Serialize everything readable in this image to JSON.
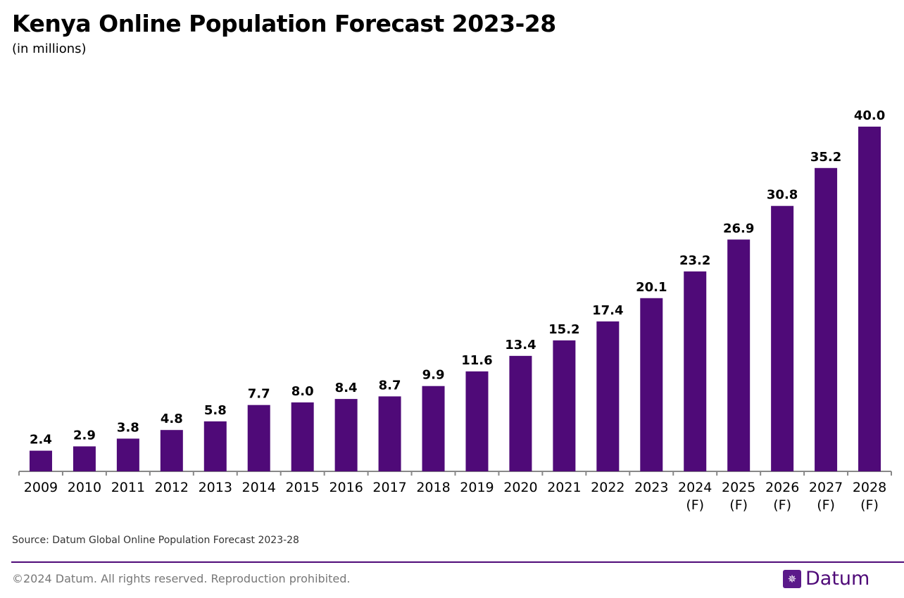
{
  "chart_data": {
    "type": "bar",
    "title": "Kenya Online Population Forecast 2023-28",
    "subtitle": "(in millions)",
    "categories": [
      "2009",
      "2010",
      "2011",
      "2012",
      "2013",
      "2014",
      "2015",
      "2016",
      "2017",
      "2018",
      "2019",
      "2020",
      "2021",
      "2022",
      "2023",
      "2024\n(F)",
      "2025\n(F)",
      "2026\n(F)",
      "2027\n(F)",
      "2028\n(F)"
    ],
    "values": [
      2.4,
      2.9,
      3.8,
      4.8,
      5.8,
      7.7,
      8.0,
      8.4,
      8.7,
      9.9,
      11.6,
      13.4,
      15.2,
      17.4,
      20.1,
      23.2,
      26.9,
      30.8,
      35.2,
      40.0
    ],
    "ylim": [
      0,
      40
    ],
    "grid": false,
    "xlabel": "",
    "ylabel": "",
    "bar_color": "#4f0a78"
  },
  "footer": {
    "source": "Source: Datum Global Online Population Forecast 2023-28",
    "copyright": "©2024 Datum. All rights reserved. Reproduction prohibited.",
    "logo_text": "Datum",
    "logo_icon": "globe-grid-icon"
  }
}
